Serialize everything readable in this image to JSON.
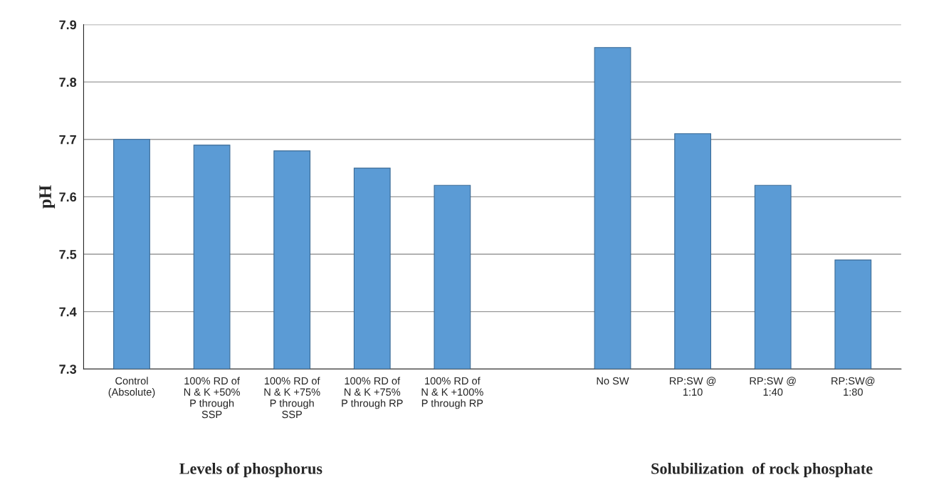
{
  "chart_data": {
    "type": "bar",
    "categories": [
      "Control\n(Absolute)",
      "100% RD of\nN & K +50%\nP through\nSSP",
      "100% RD of\nN & K +75%\nP through\nSSP",
      "100% RD of\nN & K +75%\nP through RP",
      "100% RD of\nN & K +100%\nP through RP",
      null,
      "No SW",
      "RP:SW @\n1:10",
      "RP:SW @\n1:40",
      "RP:SW@\n1:80"
    ],
    "values": [
      7.7,
      7.69,
      7.68,
      7.65,
      7.62,
      null,
      7.86,
      7.71,
      7.62,
      7.49
    ],
    "color": "#5b9bd5",
    "ylabel": "pH",
    "ylim": [
      7.3,
      7.9
    ],
    "yticks": [
      7.3,
      7.4,
      7.5,
      7.6,
      7.7,
      7.8,
      7.9
    ],
    "grid": "y",
    "annotations": [
      "Levels of phosphorus",
      "Solubilization  of rock phosphate"
    ]
  }
}
